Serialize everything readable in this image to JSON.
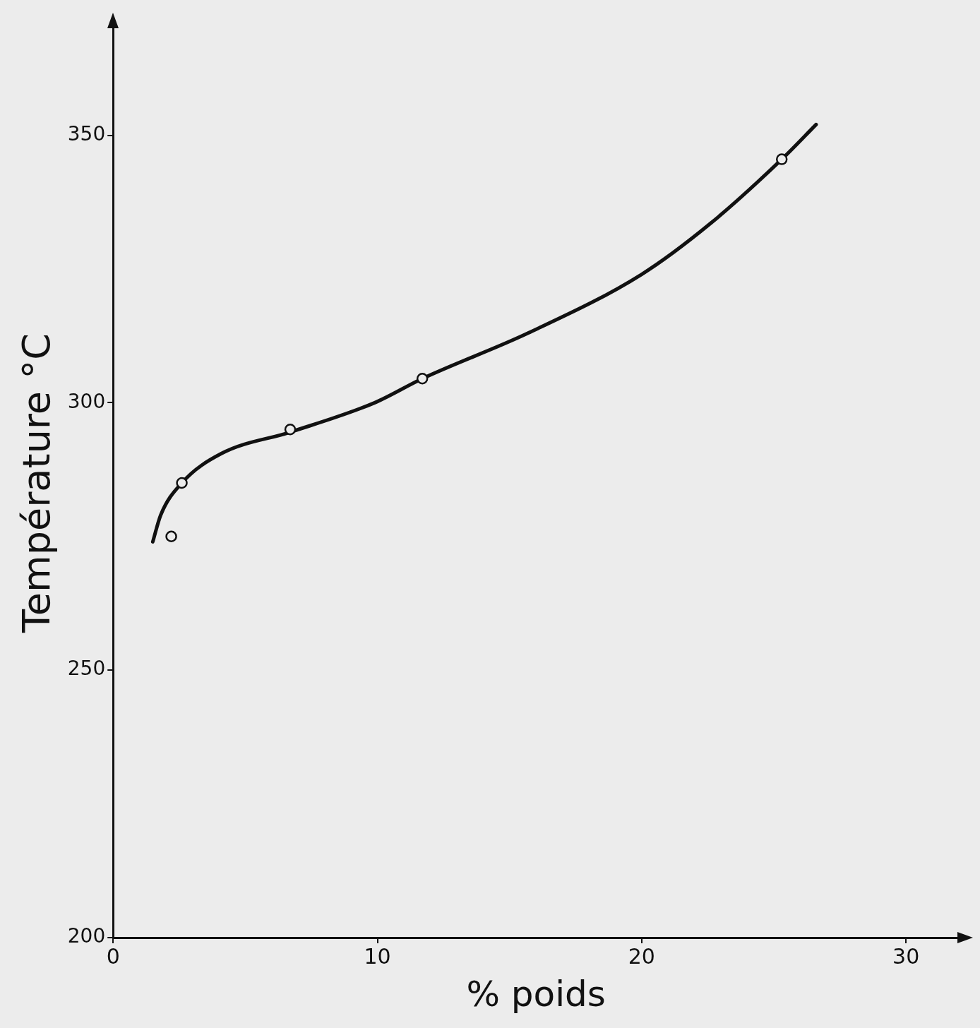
{
  "chart_data": {
    "type": "line",
    "xlabel": "% poids",
    "ylabel": "Température °C",
    "xlim": [
      0,
      32
    ],
    "ylim": [
      200,
      370
    ],
    "xticks": [
      0,
      10,
      20,
      30
    ],
    "yticks": [
      200,
      250,
      300,
      350
    ],
    "grid": false,
    "legend": false,
    "series": [
      {
        "type": "line",
        "color": "#111111",
        "marker": "none",
        "line_style": "solid",
        "x": [
          1.5,
          1.8,
          2.6,
          4.1,
          6.7,
          9.9,
          11.7,
          15.7,
          20.0,
          22.6,
          25.3,
          26.6
        ],
        "values": [
          274,
          279,
          285,
          290.5,
          294.5,
          300,
          304.5,
          313,
          324,
          333.5,
          345.5,
          352
        ]
      },
      {
        "type": "scatter",
        "color": "#111111",
        "marker": "circle",
        "x": [
          2.2,
          2.6,
          6.7,
          11.7,
          25.3
        ],
        "values": [
          275,
          285,
          295,
          304.5,
          345.5
        ]
      }
    ]
  }
}
